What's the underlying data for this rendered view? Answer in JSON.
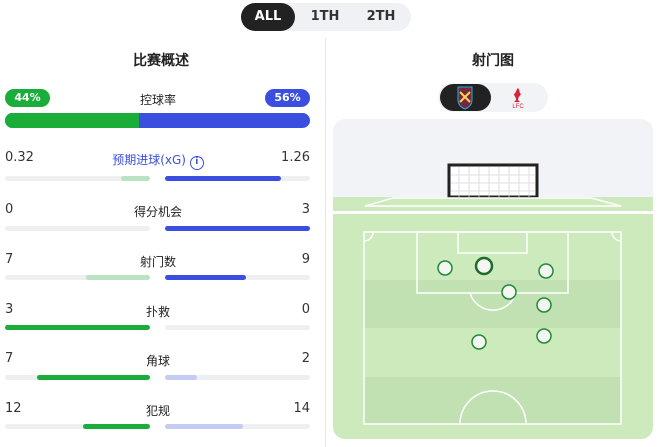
{
  "tabs": [
    {
      "label": "ALL",
      "active": true
    },
    {
      "label": "1TH"
    },
    {
      "label": "2TH"
    }
  ],
  "overview": {
    "title": "比赛概述",
    "possession": {
      "label": "控球率",
      "home": "44%",
      "away": "56%",
      "home_value": 44,
      "away_value": 56
    },
    "stats": [
      {
        "label": "预期进球(xG)",
        "home": "0.32",
        "away": "1.26",
        "home_frac": 0.2,
        "away_frac": 0.8,
        "home_color": "#b9e3c2",
        "away_color": "#3a4fe0",
        "info": true
      },
      {
        "label": "得分机会",
        "home": "0",
        "away": "3",
        "home_frac": 0,
        "away_frac": 1,
        "home_color": "#1aad3a",
        "away_color": "#3a4fe0"
      },
      {
        "label": "射门数",
        "home": "7",
        "away": "9",
        "home_frac": 0.44,
        "away_frac": 0.56,
        "home_color": "#b9e3c2",
        "away_color": "#3a4fe0"
      },
      {
        "label": "扑救",
        "home": "3",
        "away": "0",
        "home_frac": 1,
        "away_frac": 0,
        "home_color": "#1aad3a",
        "away_color": "#3a4fe0"
      },
      {
        "label": "角球",
        "home": "7",
        "away": "2",
        "home_frac": 0.78,
        "away_frac": 0.22,
        "home_color": "#1aad3a",
        "away_color": "#c5cbf3"
      },
      {
        "label": "犯规",
        "home": "12",
        "away": "14",
        "home_frac": 0.46,
        "away_frac": 0.54,
        "home_color": "#1aad3a",
        "away_color": "#c5cbf3"
      }
    ]
  },
  "shotmap": {
    "title": "射门图",
    "teams": [
      {
        "name": "West Ham",
        "icon": "west-ham-crest",
        "selected": true
      },
      {
        "name": "Liverpool",
        "icon": "liverpool-crest",
        "label": "LFC"
      }
    ],
    "shot_count": 7
  },
  "colors": {
    "home": "#1aad3a",
    "away": "#3a4fe0",
    "pitch": "#cdeabc",
    "pitch_dark": "#c1e1b2"
  }
}
